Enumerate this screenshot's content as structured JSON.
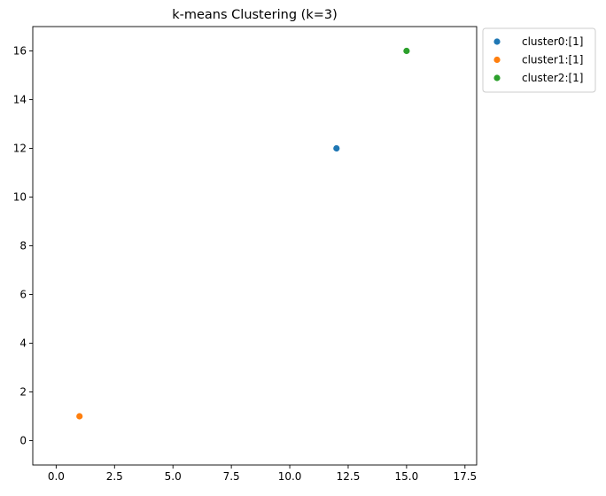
{
  "chart_data": {
    "type": "scatter",
    "title": "k-means Clustering (k=3)",
    "xlabel": "",
    "ylabel": "",
    "xlim": [
      -1,
      18
    ],
    "ylim": [
      -1,
      17
    ],
    "x_ticks": [
      0,
      2.5,
      5,
      7.5,
      10,
      12.5,
      15,
      17.5
    ],
    "x_tick_labels": [
      "0.0",
      "2.5",
      "5.0",
      "7.5",
      "10.0",
      "12.5",
      "15.0",
      "17.5"
    ],
    "y_ticks": [
      0,
      2,
      4,
      6,
      8,
      10,
      12,
      14,
      16
    ],
    "y_tick_labels": [
      "0",
      "2",
      "4",
      "6",
      "8",
      "10",
      "12",
      "14",
      "16"
    ],
    "grid": false,
    "legend_position": "outside-top-right",
    "series": [
      {
        "name": "cluster0:[1]",
        "color": "#1f77b4",
        "points": [
          [
            12,
            12
          ]
        ]
      },
      {
        "name": "cluster1:[1]",
        "color": "#ff7f0e",
        "points": [
          [
            1,
            1
          ]
        ]
      },
      {
        "name": "cluster2:[1]",
        "color": "#2ca02c",
        "points": [
          [
            15,
            16
          ]
        ]
      }
    ]
  }
}
